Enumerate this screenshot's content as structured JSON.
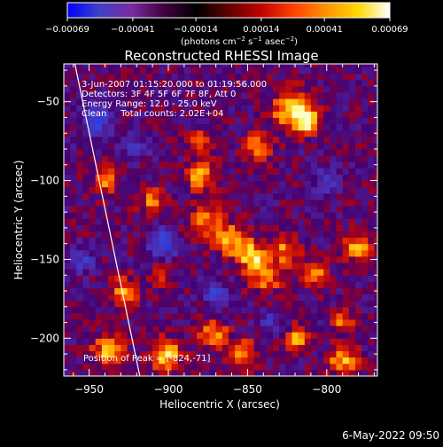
{
  "chart_data": {
    "type": "heatmap",
    "title": "Reconstructed RHESSI Image",
    "xlabel": "Heliocentric X (arcsec)",
    "ylabel": "Heliocentric Y (arcsec)",
    "xlim": [
      -966,
      -768
    ],
    "ylim": [
      -224,
      -26
    ],
    "x_ticks": [
      -950,
      -900,
      -850,
      -800
    ],
    "y_ticks": [
      -200,
      -150,
      -100,
      -50
    ],
    "x_tick_labels": [
      "−950",
      "−900",
      "−850",
      "−800"
    ],
    "y_tick_labels": [
      "−200",
      "−150",
      "−100",
      "−50"
    ],
    "colorbar": {
      "range": [
        -0.00069,
        0.00069
      ],
      "tick_values": [
        -0.00069,
        -0.00041,
        -0.00014,
        0.00014,
        0.00041,
        0.00069
      ],
      "tick_labels": [
        "−0.00069",
        "−0.00041",
        "−0.00014",
        "0.00014",
        "0.00041",
        "0.00069"
      ],
      "unit_label_parts": [
        "(photons cm",
        "−2",
        " s",
        "−1",
        " asec",
        "−2",
        ")"
      ],
      "colors": [
        "#0000ff",
        "#4040c8",
        "#7a2aa0",
        "#400040",
        "#000000",
        "#600000",
        "#c00000",
        "#ff4000",
        "#ff9000",
        "#ffd800",
        "#ffffff"
      ]
    },
    "annotations": [
      "3-Jun-2007 01:15:20.000 to 01:19:56.000",
      "Detectors: 3F 4F 5F 6F 7F 8F, Att 0",
      "Energy Range: 12.0 - 25.0 keV",
      "Clean     Total counts: 2.02E+04"
    ],
    "peak_label": "Position of Peak = [-824,-71]",
    "limb_line": [
      [
        -959,
        -26
      ],
      [
        -918,
        -224
      ]
    ],
    "hot_spots": [
      {
        "x": -822,
        "y": -55,
        "r": 12,
        "v": 0.0006
      },
      {
        "x": -812,
        "y": -62,
        "r": 8,
        "v": 0.00055
      },
      {
        "x": -843,
        "y": -78,
        "r": 9,
        "v": 0.0004
      },
      {
        "x": -880,
        "y": -97,
        "r": 9,
        "v": 0.0005
      },
      {
        "x": -877,
        "y": -125,
        "r": 10,
        "v": 0.00045
      },
      {
        "x": -860,
        "y": -138,
        "r": 10,
        "v": 0.0005
      },
      {
        "x": -847,
        "y": -148,
        "r": 9,
        "v": 0.00055
      },
      {
        "x": -838,
        "y": -160,
        "r": 10,
        "v": 0.00045
      },
      {
        "x": -826,
        "y": -144,
        "r": 9,
        "v": 0.0004
      },
      {
        "x": -780,
        "y": -142,
        "r": 9,
        "v": 0.0005
      },
      {
        "x": -806,
        "y": -160,
        "r": 8,
        "v": 0.0004
      },
      {
        "x": -940,
        "y": -100,
        "r": 8,
        "v": 0.00045
      },
      {
        "x": -910,
        "y": -112,
        "r": 8,
        "v": 0.0004
      },
      {
        "x": -928,
        "y": -170,
        "r": 9,
        "v": 0.0004
      },
      {
        "x": -938,
        "y": -208,
        "r": 10,
        "v": 0.0005
      },
      {
        "x": -902,
        "y": -210,
        "r": 10,
        "v": 0.00055
      },
      {
        "x": -872,
        "y": -196,
        "r": 9,
        "v": 0.00045
      },
      {
        "x": -852,
        "y": -210,
        "r": 9,
        "v": 0.0004
      },
      {
        "x": -818,
        "y": -200,
        "r": 8,
        "v": 0.00045
      },
      {
        "x": -790,
        "y": -214,
        "r": 9,
        "v": 0.0005
      },
      {
        "x": -790,
        "y": -190,
        "r": 7,
        "v": 0.0004
      },
      {
        "x": -880,
        "y": -75,
        "r": 7,
        "v": 0.00035
      },
      {
        "x": -905,
        "y": -160,
        "r": 7,
        "v": 0.00035
      }
    ],
    "cold_spots": [
      {
        "x": -945,
        "y": -62,
        "r": 10,
        "v": -0.0004
      },
      {
        "x": -903,
        "y": -140,
        "r": 9,
        "v": -0.00045
      },
      {
        "x": -870,
        "y": -172,
        "r": 8,
        "v": -0.00035
      },
      {
        "x": -836,
        "y": -190,
        "r": 7,
        "v": -0.0003
      },
      {
        "x": -800,
        "y": -100,
        "r": 8,
        "v": -0.00035
      },
      {
        "x": -955,
        "y": -150,
        "r": 8,
        "v": -0.0003
      },
      {
        "x": -920,
        "y": -80,
        "r": 7,
        "v": -0.0003
      }
    ]
  },
  "timestamp": "6-May-2022 09:50"
}
